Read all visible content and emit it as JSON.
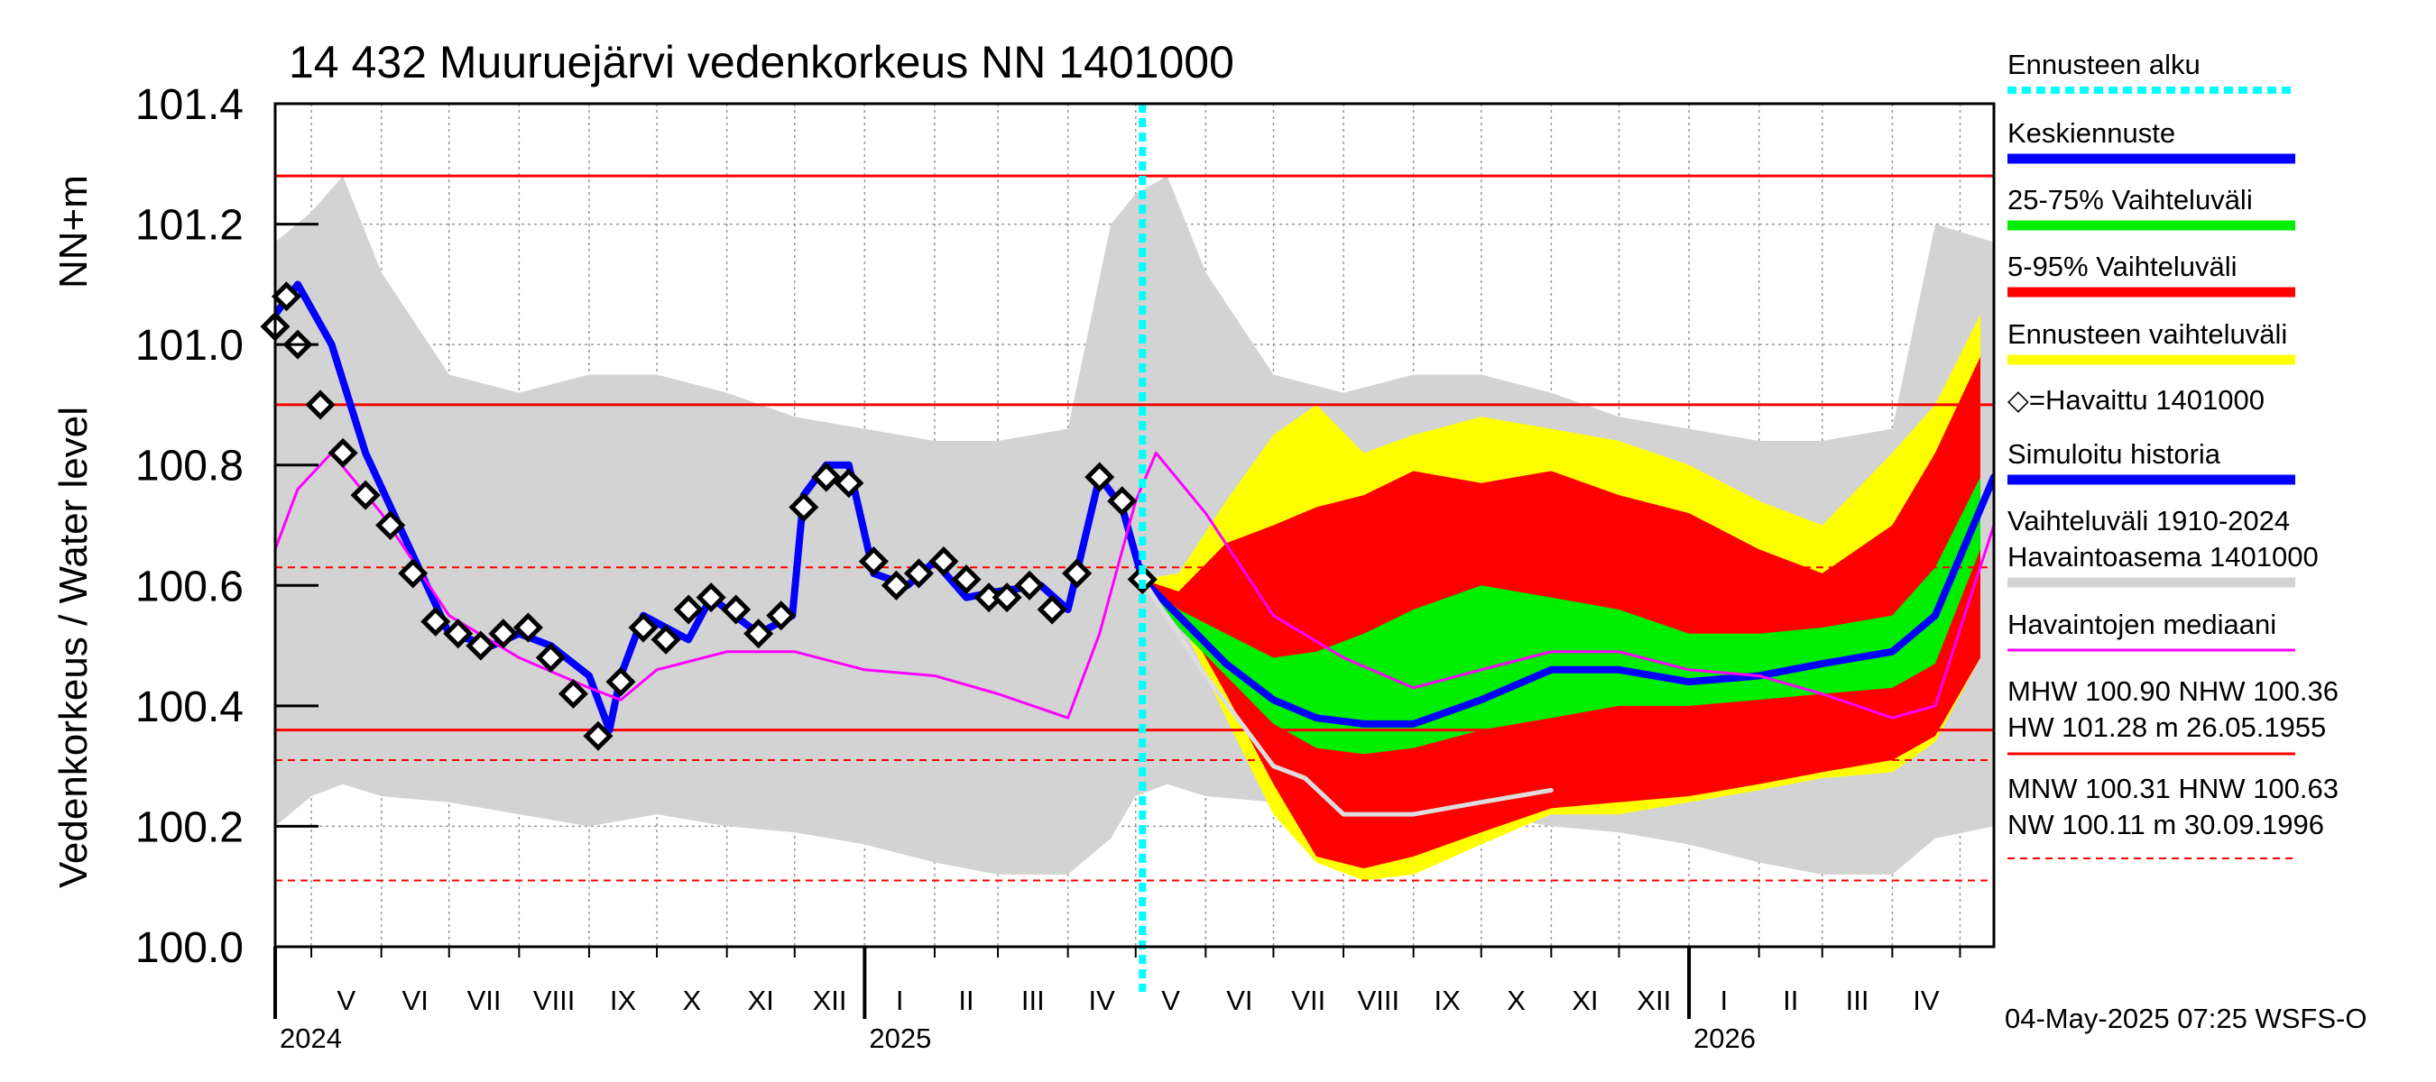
{
  "chart_data": {
    "type": "area",
    "title": "14 432 Muuruejärvi vedenkorkeus NN 1401000",
    "ylabel": "Vedenkorkeus / Water level",
    "yunit": "NN+m",
    "ylim": [
      100.0,
      101.4
    ],
    "yticks": [
      "100.0",
      "100.2",
      "100.4",
      "100.6",
      "100.8",
      "101.0",
      "101.2",
      "101.4"
    ],
    "xlim": [
      "2024-04-15",
      "2026-05-16"
    ],
    "months": [
      {
        "label": "V",
        "start": "2024-05-01"
      },
      {
        "label": "VI",
        "start": "2024-06-01"
      },
      {
        "label": "VII",
        "start": "2024-07-01"
      },
      {
        "label": "VIII",
        "start": "2024-08-01"
      },
      {
        "label": "IX",
        "start": "2024-09-01"
      },
      {
        "label": "X",
        "start": "2024-10-01"
      },
      {
        "label": "XI",
        "start": "2024-11-01"
      },
      {
        "label": "XII",
        "start": "2024-12-01"
      },
      {
        "label": "I",
        "start": "2025-01-01"
      },
      {
        "label": "II",
        "start": "2025-02-01"
      },
      {
        "label": "III",
        "start": "2025-03-01"
      },
      {
        "label": "IV",
        "start": "2025-04-01"
      },
      {
        "label": "V",
        "start": "2025-05-01"
      },
      {
        "label": "VI",
        "start": "2025-06-01"
      },
      {
        "label": "VII",
        "start": "2025-07-01"
      },
      {
        "label": "VIII",
        "start": "2025-08-01"
      },
      {
        "label": "IX",
        "start": "2025-09-01"
      },
      {
        "label": "X",
        "start": "2025-10-01"
      },
      {
        "label": "XI",
        "start": "2025-11-01"
      },
      {
        "label": "XII",
        "start": "2025-12-01"
      },
      {
        "label": "I",
        "start": "2026-01-01"
      },
      {
        "label": "II",
        "start": "2026-02-01"
      },
      {
        "label": "III",
        "start": "2026-03-01"
      },
      {
        "label": "IV",
        "start": "2026-04-01"
      },
      {
        "label": "",
        "start": "2026-05-01"
      }
    ],
    "years": [
      {
        "label": "2024",
        "date": "2024-04-15"
      },
      {
        "label": "2025",
        "date": "2025-01-01"
      },
      {
        "label": "2026",
        "date": "2026-01-01"
      }
    ],
    "forecast_start": "2025-05-04",
    "reference_lines": [
      {
        "name": "HW",
        "value": 101.28,
        "style": "solid"
      },
      {
        "name": "MHW",
        "value": 100.9,
        "style": "solid"
      },
      {
        "name": "HNW",
        "value": 100.63,
        "style": "dashed"
      },
      {
        "name": "NHW",
        "value": 100.36,
        "style": "solid"
      },
      {
        "name": "MNW",
        "value": 100.31,
        "style": "dashed"
      },
      {
        "name": "NW",
        "value": 100.11,
        "style": "dashed"
      }
    ],
    "series": [
      {
        "name": "Vaihteluväli 1910-2024 Havaintoasema 1401000",
        "kind": "band",
        "color": "#d3d3d3",
        "x": [
          "2024-04-15",
          "2024-05-01",
          "2024-05-15",
          "2024-06-01",
          "2024-07-01",
          "2024-08-01",
          "2024-09-01",
          "2024-10-01",
          "2024-11-01",
          "2024-12-01",
          "2025-01-01",
          "2025-02-01",
          "2025-03-01",
          "2025-04-01",
          "2025-04-20",
          "2025-05-01",
          "2025-05-15",
          "2025-06-01",
          "2025-07-01",
          "2025-08-01",
          "2025-09-01",
          "2025-10-01",
          "2025-11-01",
          "2025-12-01",
          "2026-01-01",
          "2026-02-01",
          "2026-03-01",
          "2026-04-01",
          "2026-04-20",
          "2026-05-16"
        ],
        "upper": [
          101.17,
          101.22,
          101.28,
          101.12,
          100.95,
          100.92,
          100.95,
          100.95,
          100.92,
          100.88,
          100.86,
          100.84,
          100.84,
          100.86,
          101.2,
          101.25,
          101.28,
          101.12,
          100.95,
          100.92,
          100.95,
          100.95,
          100.92,
          100.88,
          100.86,
          100.84,
          100.84,
          100.86,
          101.2,
          101.17
        ],
        "lower": [
          100.2,
          100.25,
          100.27,
          100.25,
          100.24,
          100.22,
          100.2,
          100.22,
          100.2,
          100.19,
          100.17,
          100.14,
          100.12,
          100.12,
          100.18,
          100.25,
          100.27,
          100.25,
          100.24,
          100.22,
          100.2,
          100.22,
          100.2,
          100.19,
          100.17,
          100.14,
          100.12,
          100.12,
          100.18,
          100.2
        ]
      },
      {
        "name": "Ennusteen vaihteluväli",
        "kind": "band",
        "color": "#ffff00",
        "x": [
          "2025-05-04",
          "2025-05-20",
          "2025-06-10",
          "2025-07-01",
          "2025-07-20",
          "2025-08-10",
          "2025-09-01",
          "2025-10-01",
          "2025-11-01",
          "2025-12-01",
          "2026-01-01",
          "2026-02-01",
          "2026-03-01",
          "2026-04-01",
          "2026-04-20",
          "2026-05-10"
        ],
        "upper": [
          100.61,
          100.62,
          100.74,
          100.85,
          100.9,
          100.82,
          100.85,
          100.88,
          100.86,
          100.84,
          100.8,
          100.74,
          100.7,
          100.82,
          100.9,
          101.05
        ],
        "lower": [
          100.61,
          100.55,
          100.38,
          100.22,
          100.14,
          100.11,
          100.12,
          100.17,
          100.22,
          100.22,
          100.24,
          100.26,
          100.28,
          100.29,
          100.34,
          100.48
        ]
      },
      {
        "name": "5-95% Vaihteluväli",
        "kind": "band",
        "color": "#ff0000",
        "x": [
          "2025-05-04",
          "2025-05-20",
          "2025-06-10",
          "2025-07-01",
          "2025-07-20",
          "2025-08-10",
          "2025-09-01",
          "2025-10-01",
          "2025-11-01",
          "2025-12-01",
          "2026-01-01",
          "2026-02-01",
          "2026-03-01",
          "2026-04-01",
          "2026-04-20",
          "2026-05-10"
        ],
        "upper": [
          100.61,
          100.59,
          100.67,
          100.7,
          100.73,
          100.75,
          100.79,
          100.77,
          100.79,
          100.75,
          100.72,
          100.66,
          100.62,
          100.7,
          100.82,
          100.98
        ],
        "lower": [
          100.61,
          100.56,
          100.42,
          100.27,
          100.15,
          100.13,
          100.15,
          100.19,
          100.23,
          100.24,
          100.25,
          100.27,
          100.29,
          100.31,
          100.35,
          100.48
        ]
      },
      {
        "name": "25-75% Vaihteluväli",
        "kind": "band",
        "color": "#00ee00",
        "x": [
          "2025-05-04",
          "2025-05-20",
          "2025-06-10",
          "2025-07-01",
          "2025-07-20",
          "2025-08-10",
          "2025-09-01",
          "2025-10-01",
          "2025-11-01",
          "2025-12-01",
          "2026-01-01",
          "2026-02-01",
          "2026-03-01",
          "2026-04-01",
          "2026-04-20",
          "2026-05-10"
        ],
        "upper": [
          100.61,
          100.56,
          100.52,
          100.48,
          100.49,
          100.52,
          100.56,
          100.6,
          100.58,
          100.56,
          100.52,
          100.52,
          100.53,
          100.55,
          100.63,
          100.78
        ],
        "lower": [
          100.61,
          100.53,
          100.45,
          100.37,
          100.33,
          100.32,
          100.33,
          100.36,
          100.38,
          100.4,
          100.4,
          100.41,
          100.42,
          100.43,
          100.47,
          100.66
        ]
      },
      {
        "name": "Simuloitu historia",
        "kind": "line",
        "color": "#0000ff",
        "x": [
          "2024-04-15",
          "2024-04-25",
          "2024-05-10",
          "2024-05-25",
          "2024-06-15",
          "2024-07-01",
          "2024-07-20",
          "2024-08-01",
          "2024-08-15",
          "2024-09-01",
          "2024-09-10",
          "2024-09-15",
          "2024-09-25",
          "2024-10-15",
          "2024-10-25",
          "2024-11-15",
          "2024-11-30",
          "2024-12-05",
          "2024-12-15",
          "2024-12-25",
          "2025-01-05",
          "2025-01-20",
          "2025-02-01",
          "2025-02-15",
          "2025-03-01",
          "2025-03-20",
          "2025-04-01",
          "2025-04-15",
          "2025-04-25",
          "2025-05-04"
        ],
        "y": [
          101.05,
          101.1,
          101.0,
          100.82,
          100.65,
          100.52,
          100.5,
          100.52,
          100.5,
          100.45,
          100.36,
          100.45,
          100.55,
          100.51,
          100.58,
          100.52,
          100.55,
          100.75,
          100.8,
          100.8,
          100.62,
          100.6,
          100.64,
          100.58,
          100.59,
          100.6,
          100.56,
          100.78,
          100.73,
          100.61
        ]
      },
      {
        "name": "Keskiennuste",
        "kind": "line",
        "color": "#0000ff",
        "x": [
          "2025-05-04",
          "2025-05-20",
          "2025-06-10",
          "2025-07-01",
          "2025-07-20",
          "2025-08-10",
          "2025-09-01",
          "2025-10-01",
          "2025-11-01",
          "2025-12-01",
          "2026-01-01",
          "2026-02-01",
          "2026-03-01",
          "2026-04-01",
          "2026-04-20",
          "2026-05-16"
        ],
        "y": [
          100.61,
          100.55,
          100.47,
          100.41,
          100.38,
          100.37,
          100.37,
          100.41,
          100.46,
          100.46,
          100.44,
          100.45,
          100.47,
          100.49,
          100.55,
          100.78
        ]
      },
      {
        "name": "Havaintojen mediaani",
        "kind": "line",
        "color": "#ff00ff",
        "x": [
          "2024-04-15",
          "2024-04-25",
          "2024-05-10",
          "2024-06-01",
          "2024-07-01",
          "2024-08-01",
          "2024-09-01",
          "2024-09-15",
          "2024-10-01",
          "2024-11-01",
          "2024-12-01",
          "2025-01-01",
          "2025-02-01",
          "2025-03-01",
          "2025-04-01",
          "2025-04-15",
          "2025-05-01",
          "2025-05-10",
          "2025-06-01",
          "2025-07-01",
          "2025-08-01",
          "2025-09-01",
          "2025-10-01",
          "2025-11-01",
          "2025-12-01",
          "2026-01-01",
          "2026-02-01",
          "2026-03-01",
          "2026-04-01",
          "2026-04-20",
          "2026-05-16"
        ],
        "y": [
          100.66,
          100.76,
          100.82,
          100.72,
          100.55,
          100.48,
          100.43,
          100.41,
          100.46,
          100.49,
          100.49,
          100.46,
          100.45,
          100.42,
          100.38,
          100.52,
          100.74,
          100.82,
          100.72,
          100.55,
          100.48,
          100.43,
          100.46,
          100.49,
          100.49,
          100.46,
          100.45,
          100.42,
          100.38,
          100.4,
          100.7
        ]
      },
      {
        "name": "Simuloitu historia (vaalea)",
        "kind": "line",
        "color": "#dddddd",
        "x": [
          "2025-05-04",
          "2025-06-01",
          "2025-07-01",
          "2025-07-15",
          "2025-08-01",
          "2025-09-01",
          "2025-10-01",
          "2025-11-01"
        ],
        "y": [
          100.61,
          100.45,
          100.3,
          100.28,
          100.22,
          100.22,
          100.24,
          100.26
        ]
      },
      {
        "name": "Havaittu 1401000",
        "kind": "markers",
        "color": "#000000",
        "x": [
          "2024-04-15",
          "2024-04-20",
          "2024-04-25",
          "2024-05-05",
          "2024-05-15",
          "2024-05-25",
          "2024-06-05",
          "2024-06-15",
          "2024-06-25",
          "2024-07-05",
          "2024-07-15",
          "2024-07-25",
          "2024-08-05",
          "2024-08-15",
          "2024-08-25",
          "2024-09-05",
          "2024-09-15",
          "2024-09-25",
          "2024-10-05",
          "2024-10-15",
          "2024-10-25",
          "2024-11-05",
          "2024-11-15",
          "2024-11-25",
          "2024-12-05",
          "2024-12-15",
          "2024-12-25",
          "2025-01-05",
          "2025-01-15",
          "2025-01-25",
          "2025-02-05",
          "2025-02-15",
          "2025-02-25",
          "2025-03-05",
          "2025-03-15",
          "2025-03-25",
          "2025-04-05",
          "2025-04-15",
          "2025-04-25",
          "2025-05-04"
        ],
        "y": [
          101.03,
          101.08,
          101.0,
          100.9,
          100.82,
          100.75,
          100.7,
          100.62,
          100.54,
          100.52,
          100.5,
          100.52,
          100.53,
          100.48,
          100.42,
          100.35,
          100.44,
          100.53,
          100.51,
          100.56,
          100.58,
          100.56,
          100.52,
          100.55,
          100.73,
          100.78,
          100.77,
          100.64,
          100.6,
          100.62,
          100.64,
          100.61,
          100.58,
          100.58,
          100.6,
          100.56,
          100.62,
          100.78,
          100.74,
          100.61
        ]
      }
    ]
  },
  "legend": [
    {
      "label": "Ennusteen alku",
      "color": "#00ffff",
      "style": "dotted"
    },
    {
      "label": "Keskiennuste",
      "color": "#0000ff",
      "style": "line"
    },
    {
      "label": "25-75% Vaihteluväli",
      "color": "#00ee00",
      "style": "line"
    },
    {
      "label": "5-95% Vaihteluväli",
      "color": "#ff0000",
      "style": "line"
    },
    {
      "label": "Ennusteen vaihteluväli",
      "color": "#ffff00",
      "style": "line"
    },
    {
      "label": "◇=Havaittu 1401000",
      "color": "#000000",
      "style": "marker"
    },
    {
      "label": "Simuloitu historia",
      "color": "#0000ff",
      "style": "line"
    },
    {
      "label": "Vaihteluväli 1910-2024",
      "label2": " Havaintoasema 1401000",
      "color": "#d3d3d3",
      "style": "line"
    },
    {
      "label": "Havaintojen mediaani",
      "color": "#ff00ff",
      "style": "thinline"
    }
  ],
  "stats": {
    "line1": "MHW 100.90 NHW 100.36",
    "line2": "HW 101.28 m 26.05.1955",
    "line3": "MNW 100.31 HNW 100.63",
    "line4": "NW 100.11 m 30.09.1996"
  },
  "footer": "04-May-2025 07:25 WSFS-O"
}
